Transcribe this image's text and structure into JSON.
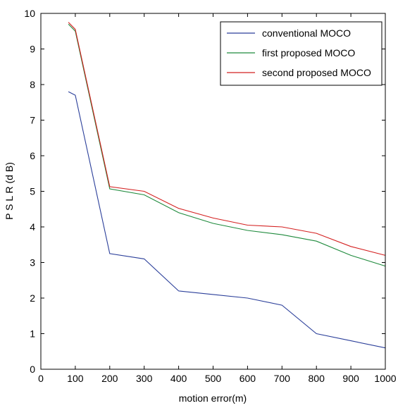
{
  "chart_data": {
    "type": "line",
    "title": "",
    "xlabel": "motion error(m)",
    "ylabel": "P S L R (d B)",
    "xlim": [
      0,
      1000
    ],
    "ylim": [
      0,
      10
    ],
    "xticks": [
      0,
      100,
      200,
      300,
      400,
      500,
      600,
      700,
      800,
      900,
      1000
    ],
    "yticks": [
      0,
      1,
      2,
      3,
      4,
      5,
      6,
      7,
      8,
      9,
      10
    ],
    "grid": false,
    "legend_position": "top-right",
    "series": [
      {
        "name": "conventional MOCO",
        "color": "#2b3f9a",
        "x": [
          80,
          100,
          200,
          300,
          400,
          500,
          600,
          700,
          800,
          900,
          1000
        ],
        "y": [
          7.8,
          7.7,
          3.25,
          3.1,
          2.2,
          2.1,
          2.0,
          1.8,
          1.0,
          0.8,
          0.6
        ]
      },
      {
        "name": "first proposed MOCO",
        "color": "#1e8a3c",
        "x": [
          80,
          100,
          200,
          300,
          400,
          500,
          600,
          700,
          800,
          900,
          1000
        ],
        "y": [
          9.7,
          9.5,
          5.07,
          4.9,
          4.4,
          4.1,
          3.9,
          3.78,
          3.6,
          3.2,
          2.9
        ]
      },
      {
        "name": "second proposed MOCO",
        "color": "#d42020",
        "x": [
          80,
          100,
          200,
          300,
          400,
          500,
          600,
          700,
          800,
          900,
          1000
        ],
        "y": [
          9.75,
          9.55,
          5.13,
          5.0,
          4.52,
          4.25,
          4.05,
          4.0,
          3.82,
          3.45,
          3.2
        ]
      }
    ]
  }
}
